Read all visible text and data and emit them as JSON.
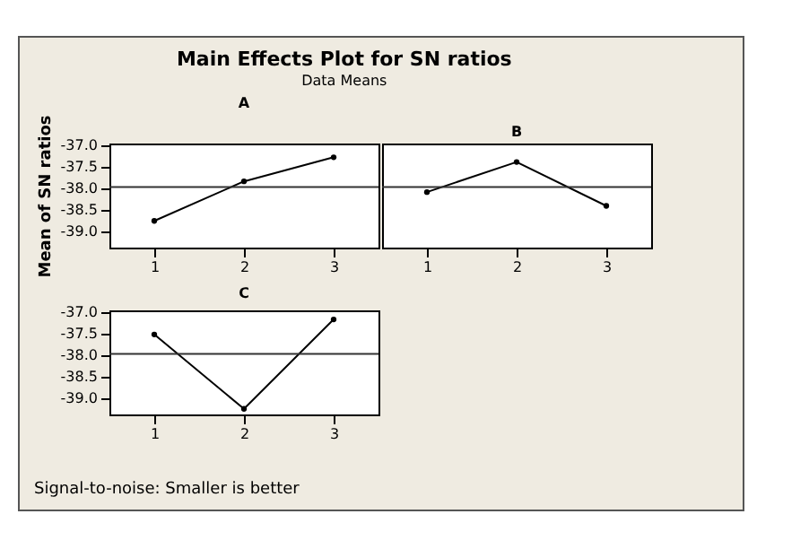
{
  "chart_data": [
    {
      "type": "other",
      "title": "Main Effects Plot for SN ratios",
      "subtitle": "Data Means",
      "annotations": [
        "Signal-to-noise: Smaller is better"
      ]
    },
    {
      "type": "line",
      "title": "A",
      "ylabel": "Mean of SN ratios",
      "categories": [
        "1",
        "2",
        "3"
      ],
      "series": [
        {
          "color": "#000000",
          "values": [
            -38.75,
            -37.83,
            -37.27
          ]
        }
      ],
      "ylim": [
        -39.37,
        -36.95
      ],
      "yticks": [
        {
          "value": -37.0,
          "label": "-37.0"
        },
        {
          "value": -37.5,
          "label": "-37.5"
        },
        {
          "value": -38.0,
          "label": "-38.0"
        },
        {
          "value": -38.5,
          "label": "-38.5"
        },
        {
          "value": -39.0,
          "label": "-39.0"
        }
      ],
      "ref_lines": [
        {
          "axis": "y",
          "value": -37.96
        }
      ],
      "marker": "circle",
      "grid": false
    },
    {
      "type": "line",
      "title": "B",
      "categories": [
        "1",
        "2",
        "3"
      ],
      "series": [
        {
          "color": "#000000",
          "values": [
            -38.08,
            -37.38,
            -38.4
          ]
        }
      ],
      "ylim": [
        -39.37,
        -36.95
      ],
      "tick_labels": "x",
      "ref_lines": [
        {
          "axis": "y",
          "value": -37.96
        }
      ],
      "marker": "circle",
      "grid": false
    },
    {
      "type": "line",
      "title": "C",
      "categories": [
        "1",
        "2",
        "3"
      ],
      "series": [
        {
          "color": "#000000",
          "values": [
            -37.51,
            -39.24,
            -37.16
          ]
        }
      ],
      "ylim": [
        -39.37,
        -36.95
      ],
      "yticks": [
        {
          "value": -37.0,
          "label": "-37.0"
        },
        {
          "value": -37.5,
          "label": "-37.5"
        },
        {
          "value": -38.0,
          "label": "-38.0"
        },
        {
          "value": -38.5,
          "label": "-38.5"
        },
        {
          "value": -39.0,
          "label": "-39.0"
        }
      ],
      "ref_lines": [
        {
          "axis": "y",
          "value": -37.96
        }
      ],
      "marker": "circle",
      "grid": false
    }
  ]
}
